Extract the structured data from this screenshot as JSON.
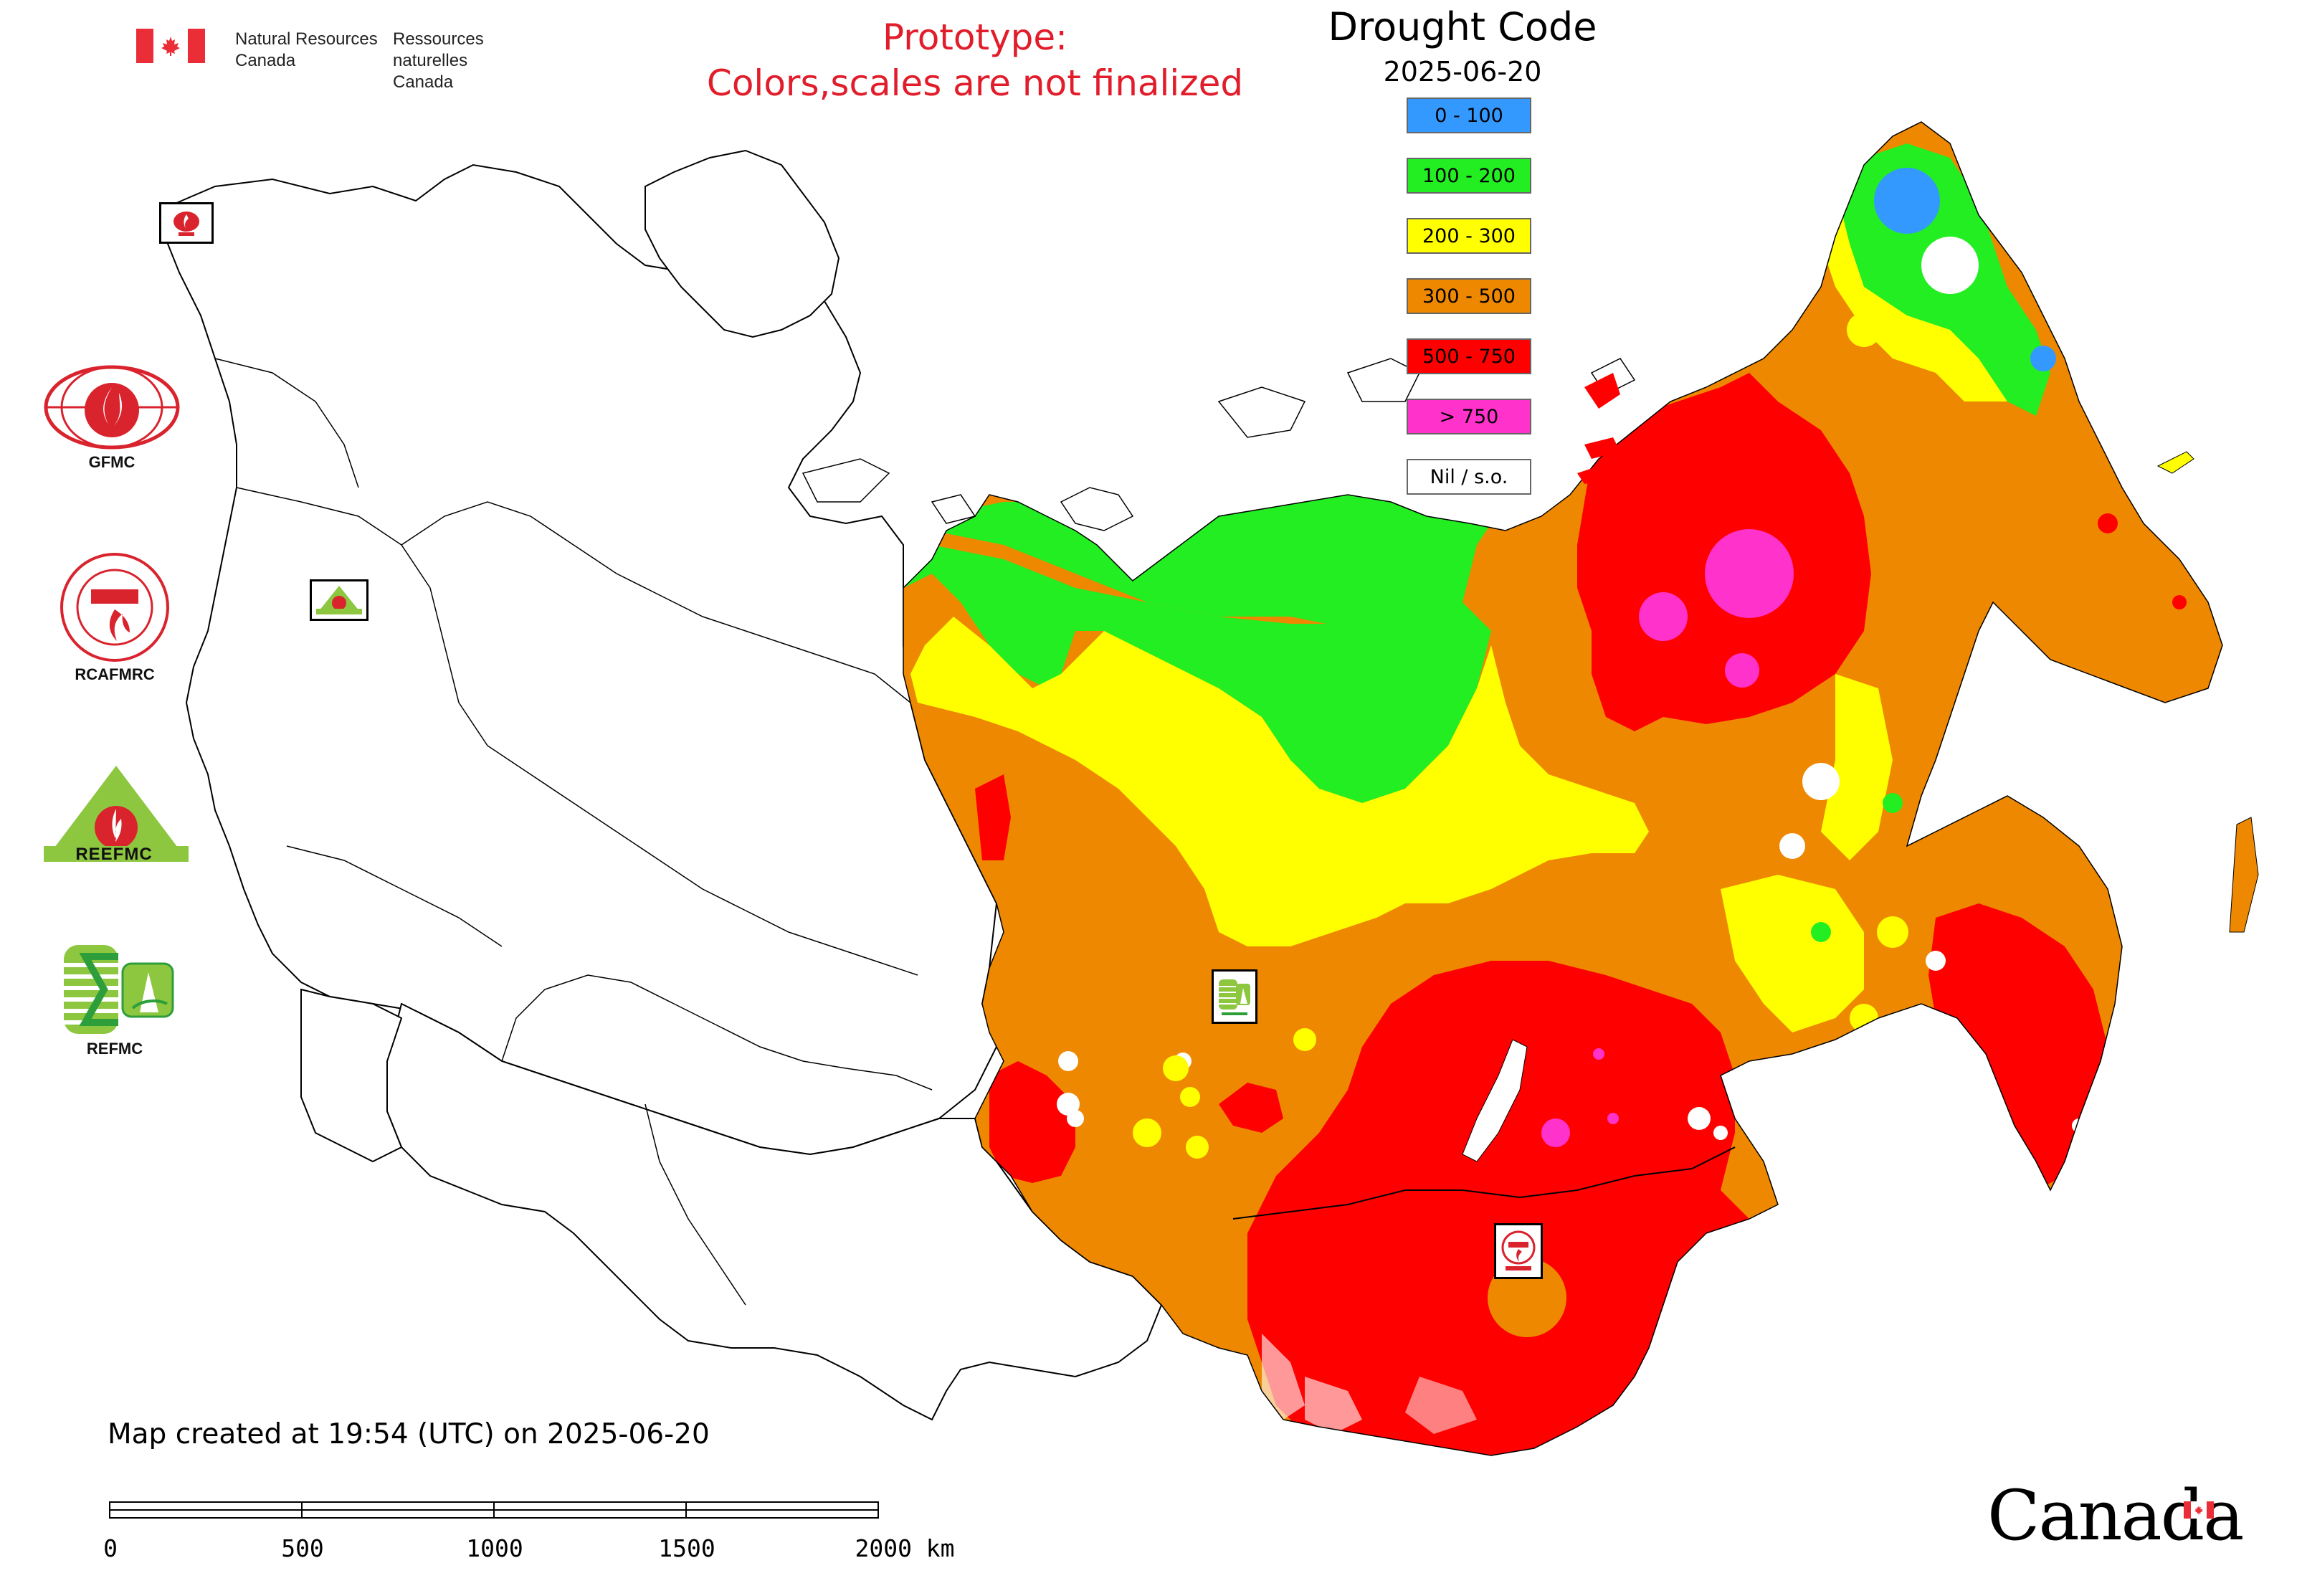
{
  "header": {
    "agency_en_line1": "Natural Resources",
    "agency_en_line2": "Canada",
    "agency_fr_line1": "Ressources naturelles",
    "agency_fr_line2": "Canada",
    "prototype_line1": "Prototype:",
    "prototype_line2": "Colors,scales are not finalized"
  },
  "legend": {
    "title": "Drought Code",
    "date": "2025-06-20",
    "items": [
      {
        "label": "0 - 100",
        "color": "#3399ff"
      },
      {
        "label": "100 - 200",
        "color": "#22ee22"
      },
      {
        "label": "200 - 300",
        "color": "#ffff00"
      },
      {
        "label": "300 - 500",
        "color": "#ee8800"
      },
      {
        "label": "500 - 750",
        "color": "#ff0000"
      },
      {
        "label": "> 750",
        "color": "#ff33cc"
      },
      {
        "label": "Nil / s.o.",
        "color": "#ffffff"
      }
    ]
  },
  "logos": [
    {
      "label": "GFMC",
      "icon": "gfmc-logo-icon"
    },
    {
      "label": "RCAFMRC",
      "icon": "rcafmrc-logo-icon"
    },
    {
      "label": "",
      "icon": "reefmc-logo-icon",
      "wordmark": "REEFMC"
    },
    {
      "label": "REFMC",
      "icon": "refmc-logo-icon"
    }
  ],
  "map_markers": [
    {
      "name": "GFMC",
      "icon": "gfmc-marker-icon"
    },
    {
      "name": "REEFMC",
      "icon": "reefmc-marker-icon"
    },
    {
      "name": "REFMC",
      "icon": "refmc-marker-icon"
    },
    {
      "name": "RCAFMRC",
      "icon": "rcafmrc-marker-icon"
    }
  ],
  "footer": {
    "created": "Map created at 19:54 (UTC) on 2025-06-20",
    "scale_ticks": [
      "0",
      "500",
      "1000",
      "1500",
      "2000 km"
    ],
    "wordmark": "Canada"
  }
}
